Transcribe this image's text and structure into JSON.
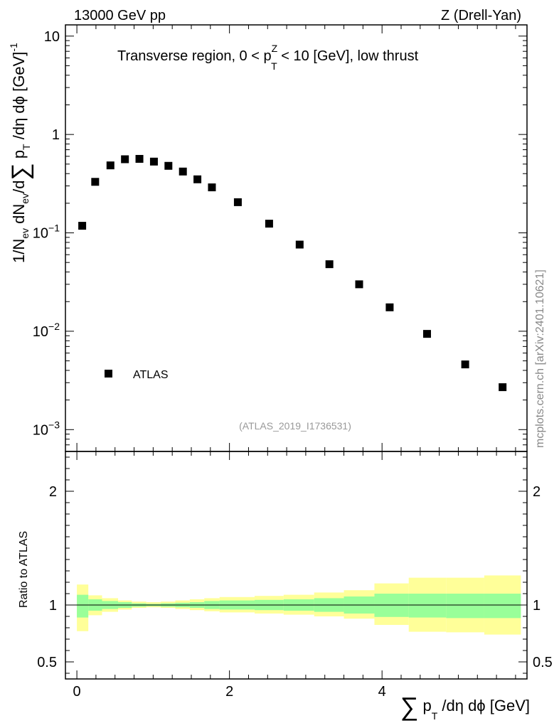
{
  "header": {
    "left": "13000 GeV pp",
    "right": "Z (Drell-Yan)"
  },
  "side_label": "mcplots.cern.ch [arXiv:2401.10621]",
  "chart_data": [
    {
      "type": "scatter",
      "title": {
        "main": "Transverse region, 0 < p",
        "sup": "Z",
        "sub": "T",
        "tail": " < 10 [GeV], low thrust"
      },
      "ylabel": {
        "p1": "1/N",
        "s1": "ev",
        "p2": " dN",
        "s2": "ev",
        "p3": "/d",
        "sigma": "∑",
        "p4": " p",
        "s4": "T",
        "p5": " /dη dϕ  [GeV]",
        "sup": "-1"
      },
      "yscale": "log",
      "xlim": [
        -0.15,
        5.9
      ],
      "ylim": [
        0.0006,
        13
      ],
      "y_ticks": [
        {
          "value": 10,
          "base": "10",
          "exp": ""
        },
        {
          "value": 1,
          "base": "1",
          "exp": ""
        },
        {
          "value": 0.1,
          "base": "10",
          "exp": "−1"
        },
        {
          "value": 0.01,
          "base": "10",
          "exp": "−2"
        },
        {
          "value": 0.001,
          "base": "10",
          "exp": "−3"
        }
      ],
      "reference_label": "(ATLAS_2019_I1736531)",
      "legend": {
        "position": "bottom-left",
        "entries": [
          "ATLAS"
        ]
      },
      "series": [
        {
          "name": "ATLAS",
          "color": "#000000",
          "x": [
            0.07,
            0.24,
            0.44,
            0.63,
            0.82,
            1.01,
            1.2,
            1.39,
            1.58,
            1.77,
            2.11,
            2.52,
            2.92,
            3.31,
            3.7,
            4.1,
            4.59,
            5.09,
            5.58
          ],
          "y": [
            0.118,
            0.33,
            0.485,
            0.56,
            0.565,
            0.53,
            0.48,
            0.42,
            0.35,
            0.29,
            0.205,
            0.124,
            0.076,
            0.048,
            0.03,
            0.0175,
            0.0094,
            0.0046,
            0.0027
          ]
        }
      ]
    },
    {
      "type": "area",
      "ylabel": "Ratio to ATLAS",
      "xlabel": {
        "sigma": "∑",
        "p": " p",
        "sub": "T",
        "tail": " /dη dϕ [GeV]"
      },
      "xlim": [
        -0.15,
        5.9
      ],
      "ylim": [
        0.35,
        2.35
      ],
      "x_ticks": [
        {
          "value": 0,
          "label": "0"
        },
        {
          "value": 2,
          "label": "2"
        },
        {
          "value": 4,
          "label": "4"
        }
      ],
      "y_ticks": [
        {
          "value": 0.5,
          "label": "0.5"
        },
        {
          "value": 1,
          "label": "1"
        },
        {
          "value": 2,
          "label": "2"
        }
      ],
      "reference_line": 1,
      "bin_edges": [
        0.0,
        0.15,
        0.33,
        0.54,
        0.72,
        0.91,
        1.1,
        1.29,
        1.48,
        1.67,
        1.87,
        2.33,
        2.71,
        3.11,
        3.5,
        3.9,
        4.35,
        4.84,
        5.34,
        5.82
      ],
      "bands": [
        {
          "name": "total",
          "color": "#ffff99",
          "low": [
            0.77,
            0.91,
            0.94,
            0.96,
            0.975,
            0.98,
            0.975,
            0.965,
            0.955,
            0.945,
            0.935,
            0.925,
            0.915,
            0.9,
            0.88,
            0.825,
            0.765,
            0.76,
            0.74
          ],
          "high": [
            1.18,
            1.085,
            1.06,
            1.04,
            1.03,
            1.025,
            1.03,
            1.04,
            1.05,
            1.06,
            1.07,
            1.08,
            1.09,
            1.11,
            1.13,
            1.19,
            1.24,
            1.24,
            1.26
          ]
        },
        {
          "name": "statistical",
          "color": "#99ff99",
          "low": [
            0.89,
            0.95,
            0.965,
            0.975,
            0.985,
            0.99,
            0.985,
            0.98,
            0.975,
            0.965,
            0.96,
            0.955,
            0.95,
            0.94,
            0.925,
            0.895,
            0.89,
            0.885,
            0.885
          ],
          "high": [
            1.09,
            1.05,
            1.035,
            1.025,
            1.015,
            1.01,
            1.015,
            1.02,
            1.025,
            1.035,
            1.04,
            1.045,
            1.05,
            1.06,
            1.075,
            1.1,
            1.1,
            1.1,
            1.1
          ]
        }
      ]
    }
  ]
}
